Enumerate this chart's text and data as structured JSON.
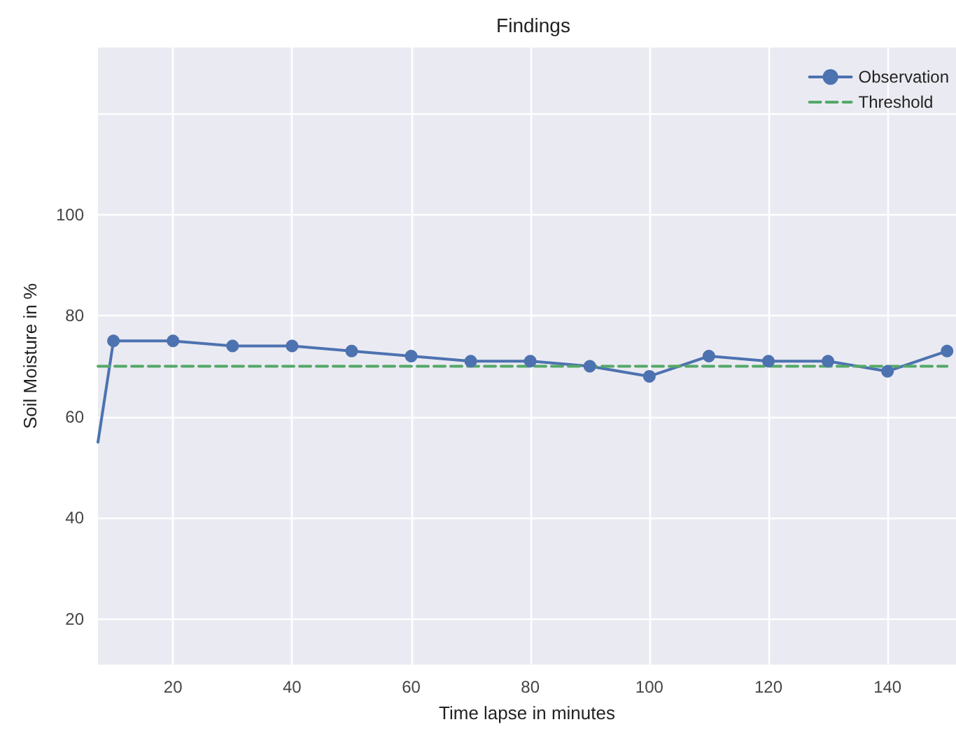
{
  "chart_data": {
    "type": "line",
    "title": "Findings",
    "xlabel": "Time lapse in minutes",
    "ylabel": "Soil Moisture in %",
    "x": [
      7.4,
      10,
      20,
      30,
      40,
      50,
      60,
      70,
      80,
      90,
      100,
      110,
      120,
      130,
      140,
      150
    ],
    "series": [
      {
        "name": "Observation",
        "color": "#4c72b0",
        "marker": "circle",
        "line_style": "solid",
        "values": [
          55,
          75,
          75,
          74,
          74,
          73,
          72,
          71,
          71,
          70,
          68,
          72,
          71,
          71,
          69,
          73
        ]
      },
      {
        "name": "Threshold",
        "color": "#55a868",
        "marker": "none",
        "line_style": "dashed",
        "x": [
          7.4,
          150
        ],
        "values": [
          70,
          70
        ]
      }
    ],
    "xlim": [
      7.4,
      151.5
    ],
    "xticks": [
      20,
      40,
      60,
      80,
      100,
      120,
      140
    ],
    "ylim": [
      11,
      133
    ],
    "yticks": [
      20,
      40,
      60,
      80,
      100,
      {
        "value": 120,
        "label": null
      }
    ],
    "grid": true,
    "legend": "top right"
  }
}
